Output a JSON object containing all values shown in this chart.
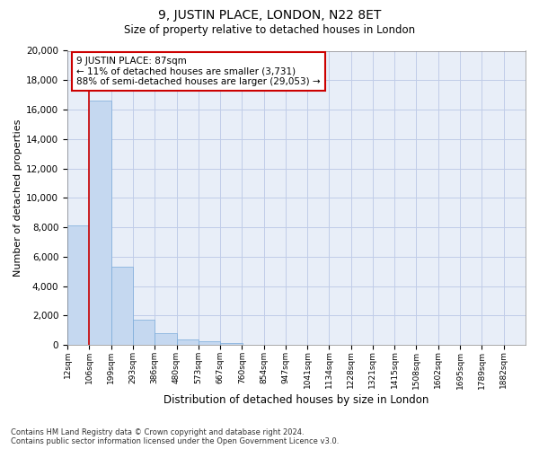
{
  "title": "9, JUSTIN PLACE, LONDON, N22 8ET",
  "subtitle": "Size of property relative to detached houses in London",
  "xlabel": "Distribution of detached houses by size in London",
  "ylabel": "Number of detached properties",
  "bar_color": "#c5d8f0",
  "bar_edge_color": "#7aabda",
  "background_color": "#e8eef8",
  "grid_color": "#c0cce8",
  "bin_labels": [
    "12sqm",
    "106sqm",
    "199sqm",
    "293sqm",
    "386sqm",
    "480sqm",
    "573sqm",
    "667sqm",
    "760sqm",
    "854sqm",
    "947sqm",
    "1041sqm",
    "1134sqm",
    "1228sqm",
    "1321sqm",
    "1415sqm",
    "1508sqm",
    "1602sqm",
    "1695sqm",
    "1789sqm",
    "1882sqm"
  ],
  "bar_heights": [
    8100,
    16600,
    5300,
    1750,
    800,
    350,
    250,
    130,
    0,
    0,
    0,
    0,
    0,
    0,
    0,
    0,
    0,
    0,
    0,
    0,
    0
  ],
  "vline_x": 106,
  "vline_color": "#cc0000",
  "annotation_box_color": "#cc0000",
  "ylim": [
    0,
    20000
  ],
  "yticks": [
    0,
    2000,
    4000,
    6000,
    8000,
    10000,
    12000,
    14000,
    16000,
    18000,
    20000
  ],
  "property_name": "9 JUSTIN PLACE",
  "property_sqm_label": "87sqm",
  "pct_smaller": 11,
  "n_smaller": 3731,
  "pct_larger_semi": 88,
  "n_larger_semi": 29053,
  "footnote1": "Contains HM Land Registry data © Crown copyright and database right 2024.",
  "footnote2": "Contains public sector information licensed under the Open Government Licence v3.0.",
  "bin_edges": [
    12,
    106,
    199,
    293,
    386,
    480,
    573,
    667,
    760,
    854,
    947,
    1041,
    1134,
    1228,
    1321,
    1415,
    1508,
    1602,
    1695,
    1789,
    1882
  ]
}
